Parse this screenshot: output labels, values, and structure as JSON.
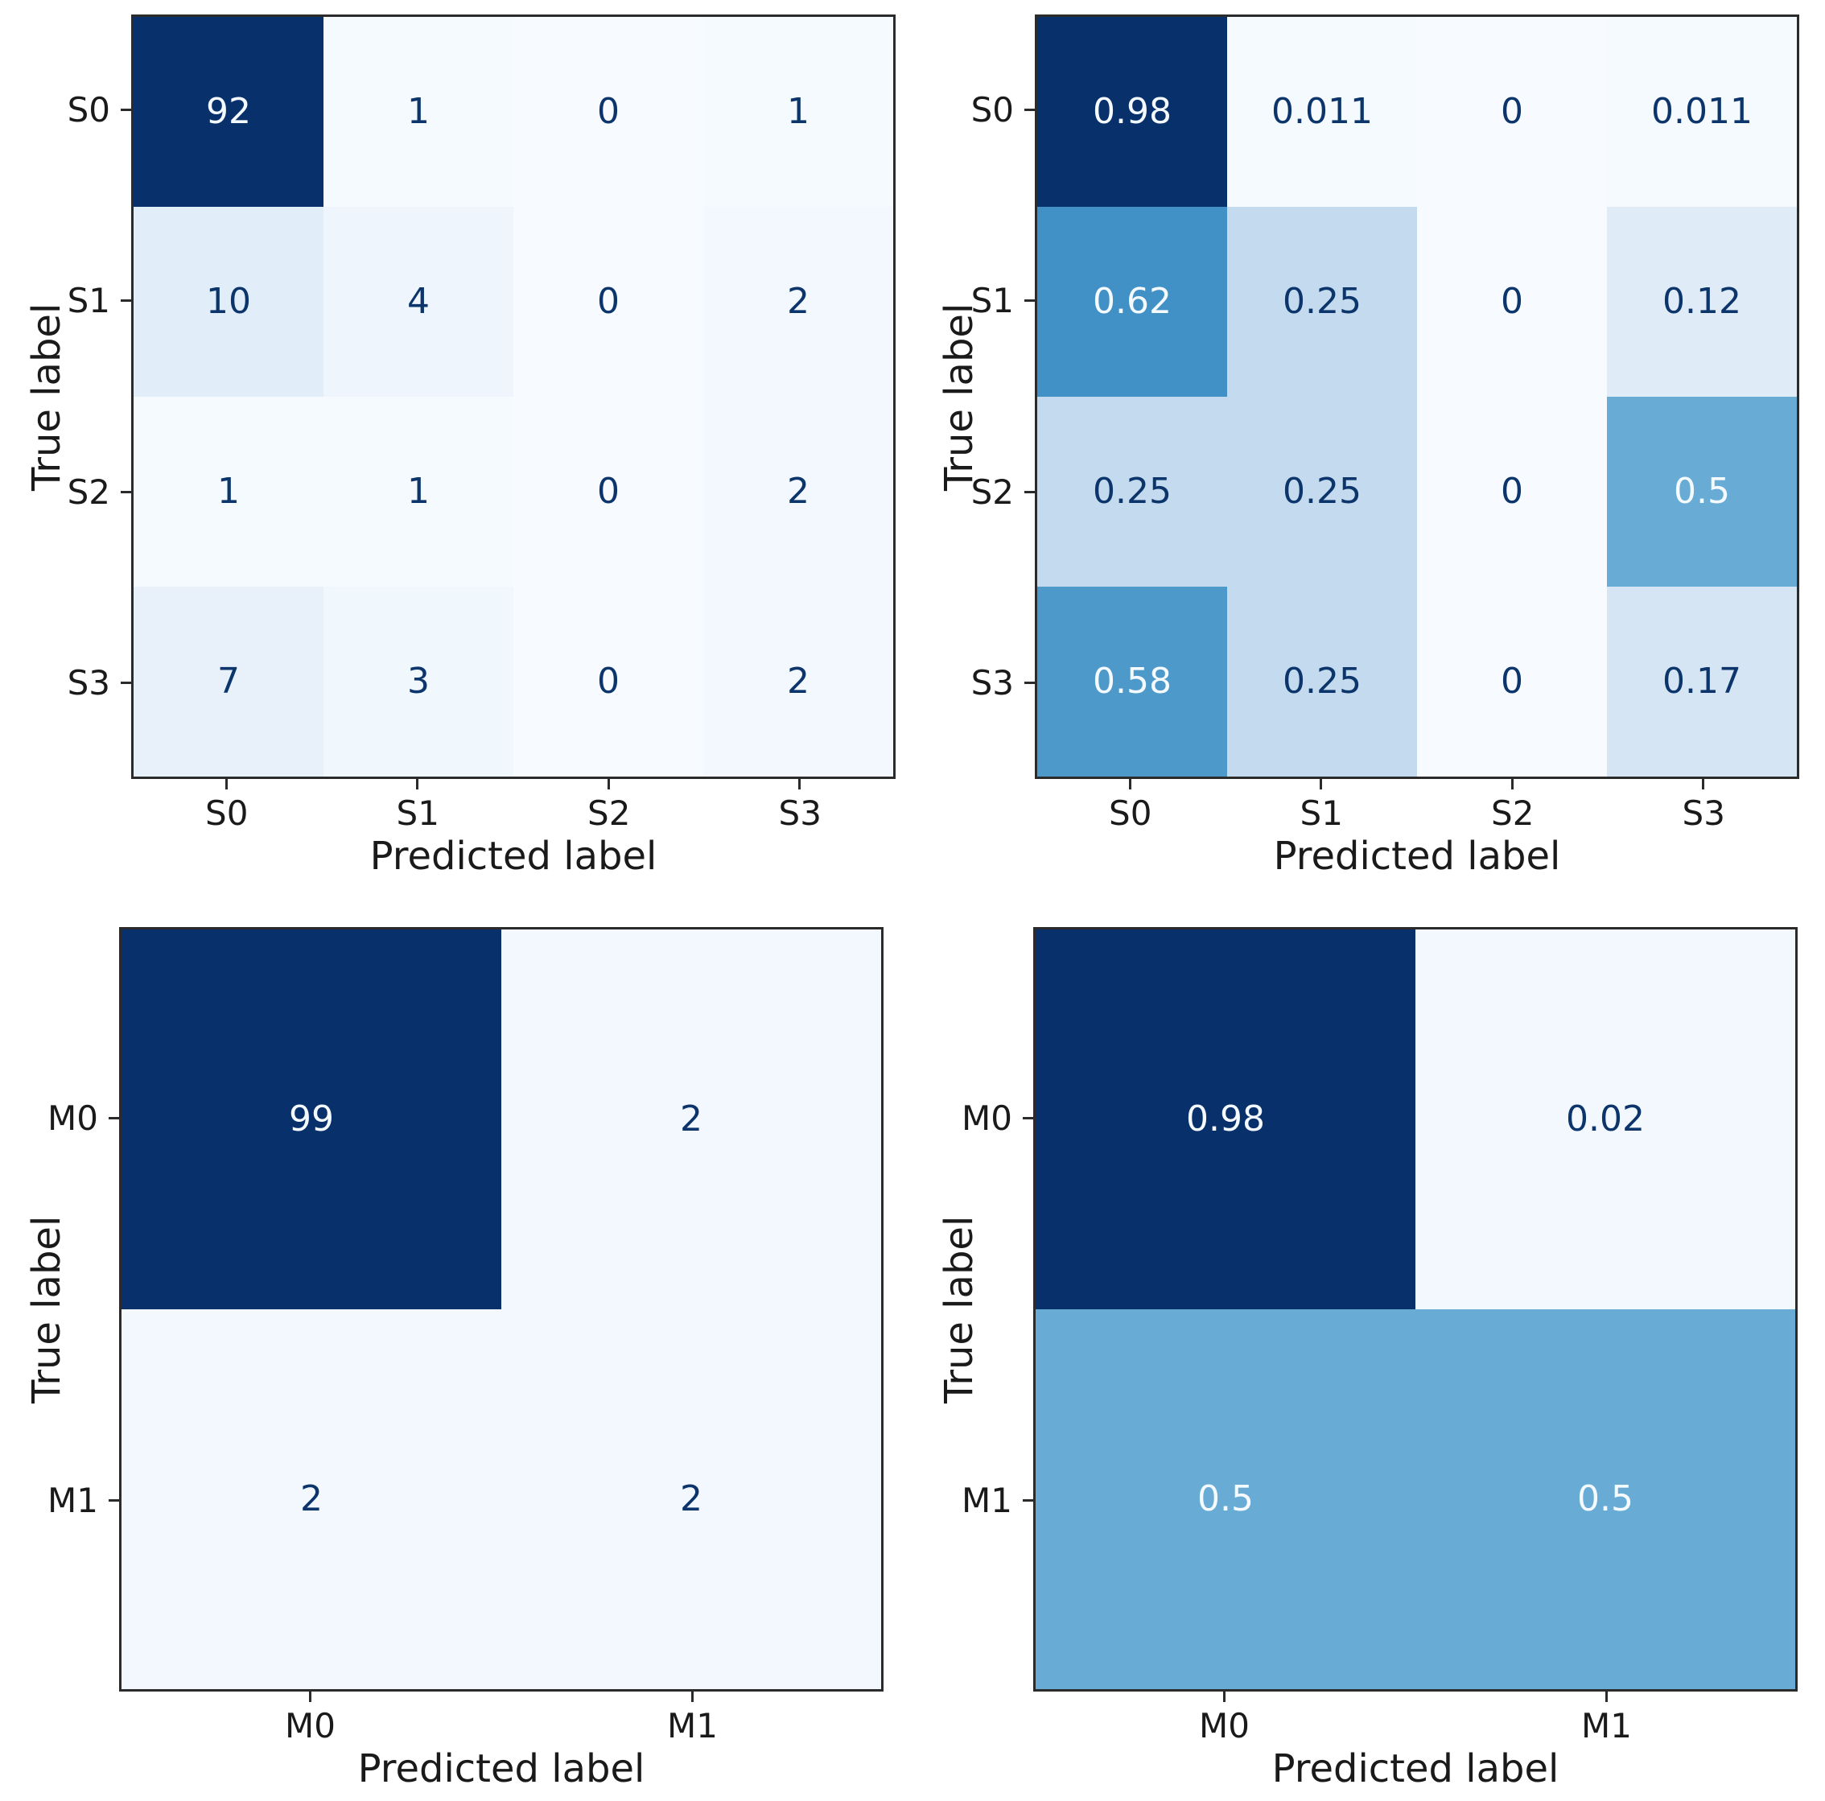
{
  "figure": {
    "background": "#ffffff",
    "layout": "2x2 grid of confusion matrices",
    "colormap": "Blues"
  },
  "style": {
    "cmap_max": "#08306b",
    "cmap_min": "#f7fbff",
    "dark_text": "#0c356b",
    "light_text": "#f5fafe",
    "axis_text": "#1a1a1a",
    "spine": "#2b2b2b"
  },
  "chart_data": [
    {
      "type": "heatmap",
      "name": "stage-confusion-counts",
      "position": "top-left",
      "xlabel": "Predicted label",
      "ylabel": "True label",
      "x_ticklabels": [
        "S0",
        "S1",
        "S2",
        "S3"
      ],
      "y_ticklabels": [
        "S0",
        "S1",
        "S2",
        "S3"
      ],
      "values": [
        [
          92,
          1,
          0,
          1
        ],
        [
          10,
          4,
          0,
          2
        ],
        [
          1,
          1,
          0,
          2
        ],
        [
          7,
          3,
          0,
          2
        ]
      ],
      "cell_text": [
        [
          "92",
          "1",
          "0",
          "1"
        ],
        [
          "10",
          "4",
          "0",
          "2"
        ],
        [
          "1",
          "1",
          "0",
          "2"
        ],
        [
          "7",
          "3",
          "0",
          "2"
        ]
      ],
      "value_range": [
        0,
        92
      ],
      "grid": false,
      "legend": "none",
      "cell_colors": [
        [
          "#08306b",
          "#f5fafe",
          "#f7fbff",
          "#f5fafe"
        ],
        [
          "#e1edf8",
          "#eef5fc",
          "#f7fbff",
          "#f3f8fe"
        ],
        [
          "#f5fafe",
          "#f5fafe",
          "#f7fbff",
          "#f3f8fe"
        ],
        [
          "#e8f1fa",
          "#f0f7fd",
          "#f7fbff",
          "#f3f8fe"
        ]
      ],
      "cell_text_colors": [
        [
          "#f5fafe",
          "#0c356b",
          "#0c356b",
          "#0c356b"
        ],
        [
          "#0c356b",
          "#0c356b",
          "#0c356b",
          "#0c356b"
        ],
        [
          "#0c356b",
          "#0c356b",
          "#0c356b",
          "#0c356b"
        ],
        [
          "#0c356b",
          "#0c356b",
          "#0c356b",
          "#0c356b"
        ]
      ]
    },
    {
      "type": "heatmap",
      "name": "stage-confusion-normalized",
      "position": "top-right",
      "xlabel": "Predicted label",
      "ylabel": "True label",
      "x_ticklabels": [
        "S0",
        "S1",
        "S2",
        "S3"
      ],
      "y_ticklabels": [
        "S0",
        "S1",
        "S2",
        "S3"
      ],
      "values": [
        [
          0.98,
          0.011,
          0,
          0.011
        ],
        [
          0.62,
          0.25,
          0,
          0.12
        ],
        [
          0.25,
          0.25,
          0,
          0.5
        ],
        [
          0.58,
          0.25,
          0,
          0.17
        ]
      ],
      "cell_text": [
        [
          "0.98",
          "0.011",
          "0",
          "0.011"
        ],
        [
          "0.62",
          "0.25",
          "0",
          "0.12"
        ],
        [
          "0.25",
          "0.25",
          "0",
          "0.5"
        ],
        [
          "0.58",
          "0.25",
          "0",
          "0.17"
        ]
      ],
      "value_range": [
        0,
        0.98
      ],
      "grid": false,
      "legend": "none",
      "cell_colors": [
        [
          "#08306b",
          "#f5fafe",
          "#f7fbff",
          "#f5fafe"
        ],
        [
          "#4191c6",
          "#c4daee",
          "#f7fbff",
          "#dfebf7"
        ],
        [
          "#c4daee",
          "#c4daee",
          "#f7fbff",
          "#68acd5"
        ],
        [
          "#4d99ca",
          "#c4daee",
          "#f7fbff",
          "#d5e5f4"
        ]
      ],
      "cell_text_colors": [
        [
          "#f5fafe",
          "#0c356b",
          "#0c356b",
          "#0c356b"
        ],
        [
          "#f5fafe",
          "#0c356b",
          "#0c356b",
          "#0c356b"
        ],
        [
          "#0c356b",
          "#0c356b",
          "#0c356b",
          "#f5fafe"
        ],
        [
          "#f5fafe",
          "#0c356b",
          "#0c356b",
          "#0c356b"
        ]
      ]
    },
    {
      "type": "heatmap",
      "name": "metastasis-confusion-counts",
      "position": "bottom-left",
      "xlabel": "Predicted label",
      "ylabel": "True label",
      "x_ticklabels": [
        "M0",
        "M1"
      ],
      "y_ticklabels": [
        "M0",
        "M1"
      ],
      "values": [
        [
          99,
          2
        ],
        [
          2,
          2
        ]
      ],
      "cell_text": [
        [
          "99",
          "2"
        ],
        [
          "2",
          "2"
        ]
      ],
      "value_range": [
        0,
        99
      ],
      "grid": false,
      "legend": "none",
      "cell_colors": [
        [
          "#08306b",
          "#f3f8fe"
        ],
        [
          "#f3f8fe",
          "#f3f8fe"
        ]
      ],
      "cell_text_colors": [
        [
          "#f5fafe",
          "#0c356b"
        ],
        [
          "#0c356b",
          "#0c356b"
        ]
      ]
    },
    {
      "type": "heatmap",
      "name": "metastasis-confusion-normalized",
      "position": "bottom-right",
      "xlabel": "Predicted label",
      "ylabel": "True label",
      "x_ticklabels": [
        "M0",
        "M1"
      ],
      "y_ticklabels": [
        "M0",
        "M1"
      ],
      "values": [
        [
          0.98,
          0.02
        ],
        [
          0.5,
          0.5
        ]
      ],
      "cell_text": [
        [
          "0.98",
          "0.02"
        ],
        [
          "0.5",
          "0.5"
        ]
      ],
      "value_range": [
        0,
        0.98
      ],
      "grid": false,
      "legend": "none",
      "cell_colors": [
        [
          "#08306b",
          "#f3f8fe"
        ],
        [
          "#68acd5",
          "#68acd5"
        ]
      ],
      "cell_text_colors": [
        [
          "#f5fafe",
          "#0c356b"
        ],
        [
          "#f5fafe",
          "#f5fafe"
        ]
      ]
    }
  ]
}
